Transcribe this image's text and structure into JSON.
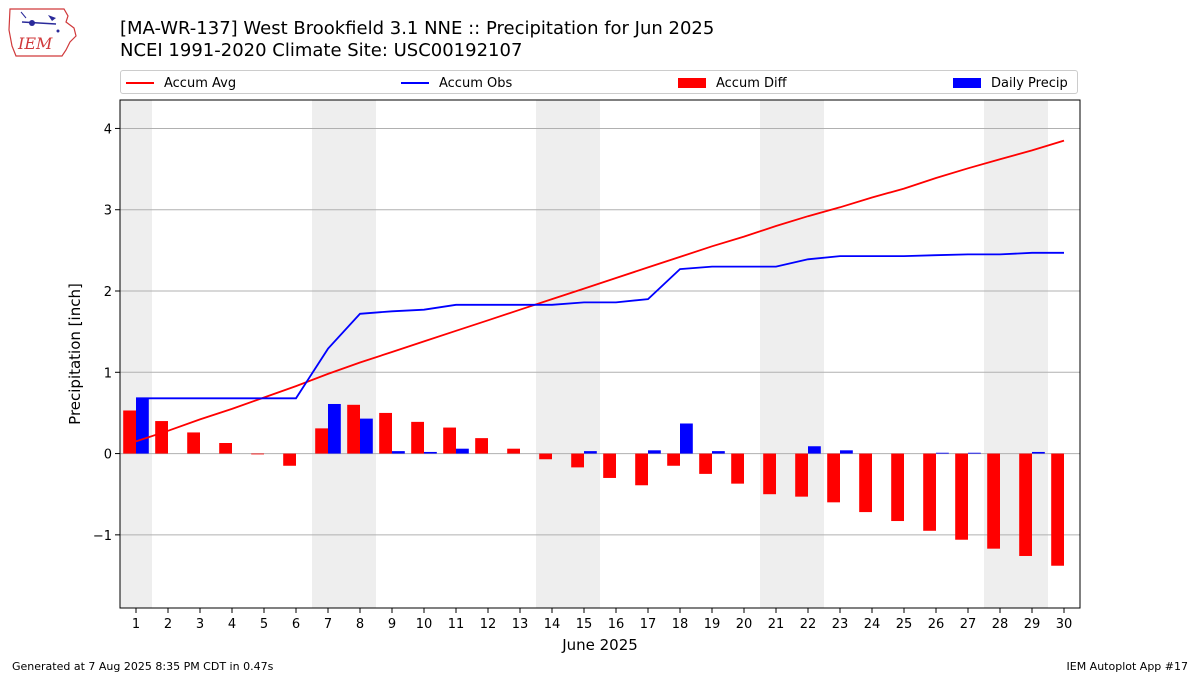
{
  "header": {
    "title_line1": "[MA-WR-137] West Brookfield 3.1 NNE :: Precipitation for Jun 2025",
    "title_line2": "NCEI 1991-2020 Climate Site: USC00192107",
    "logo_text": "IEM"
  },
  "legend": {
    "items": [
      {
        "label": "Accum Avg",
        "kind": "line",
        "color": "#ff0000"
      },
      {
        "label": "Accum Obs",
        "kind": "line",
        "color": "#0000ff"
      },
      {
        "label": "Accum Diff",
        "kind": "bar",
        "color": "#ff0000"
      },
      {
        "label": "Daily Precip",
        "kind": "bar",
        "color": "#0000ff"
      }
    ]
  },
  "footer": {
    "left": "Generated at 7 Aug 2025 8:35 PM CDT in 0.47s",
    "right": "IEM Autoplot App #17"
  },
  "chart_data": {
    "type": "bar",
    "xlabel": "June 2025",
    "ylabel": "Precipitation [inch]",
    "ylim": [
      -1.9,
      4.35
    ],
    "yticks": [
      -1,
      0,
      1,
      2,
      3,
      4
    ],
    "grid": "horizontal",
    "weekend_shading": [
      [
        1,
        1
      ],
      [
        7,
        8
      ],
      [
        14,
        15
      ],
      [
        21,
        22
      ],
      [
        28,
        29
      ]
    ],
    "x": [
      1,
      2,
      3,
      4,
      5,
      6,
      7,
      8,
      9,
      10,
      11,
      12,
      13,
      14,
      15,
      16,
      17,
      18,
      19,
      20,
      21,
      22,
      23,
      24,
      25,
      26,
      27,
      28,
      29,
      30
    ],
    "series": [
      {
        "name": "Accum Avg",
        "kind": "line",
        "color": "#ff0000",
        "values": [
          0.15,
          0.28,
          0.42,
          0.55,
          0.69,
          0.83,
          0.98,
          1.12,
          1.25,
          1.38,
          1.51,
          1.64,
          1.77,
          1.9,
          2.03,
          2.16,
          2.29,
          2.42,
          2.55,
          2.67,
          2.8,
          2.92,
          3.03,
          3.15,
          3.26,
          3.39,
          3.51,
          3.62,
          3.73,
          3.85
        ]
      },
      {
        "name": "Accum Obs",
        "kind": "line",
        "color": "#0000ff",
        "values": [
          0.68,
          0.68,
          0.68,
          0.68,
          0.68,
          0.68,
          1.29,
          1.72,
          1.75,
          1.77,
          1.83,
          1.83,
          1.83,
          1.83,
          1.86,
          1.86,
          1.9,
          2.27,
          2.3,
          2.3,
          2.3,
          2.39,
          2.43,
          2.43,
          2.43,
          2.44,
          2.45,
          2.45,
          2.47,
          2.47
        ]
      },
      {
        "name": "Accum Diff",
        "kind": "bar",
        "color": "#ff0000",
        "values": [
          0.53,
          0.4,
          0.26,
          0.13,
          -0.01,
          -0.15,
          0.31,
          0.6,
          0.5,
          0.39,
          0.32,
          0.19,
          0.06,
          -0.07,
          -0.17,
          -0.3,
          -0.39,
          -0.15,
          -0.25,
          -0.37,
          -0.5,
          -0.53,
          -0.6,
          -0.72,
          -0.83,
          -0.95,
          -1.06,
          -1.17,
          -1.26,
          -1.38
        ]
      },
      {
        "name": "Daily Precip",
        "kind": "bar",
        "color": "#0000ff",
        "values": [
          0.68,
          0,
          0,
          0,
          0,
          0,
          0.61,
          0.43,
          0.03,
          0.02,
          0.06,
          0,
          0,
          0,
          0.03,
          0,
          0.04,
          0.37,
          0.03,
          0,
          0,
          0.09,
          0.04,
          0,
          0,
          0.01,
          0.01,
          0,
          0.02,
          0
        ]
      }
    ]
  }
}
